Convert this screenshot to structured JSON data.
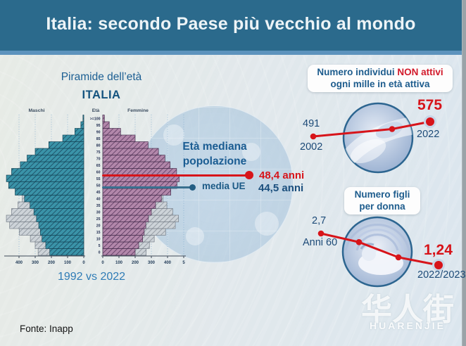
{
  "header": {
    "title": "Italia: secondo Paese più vecchio al mondo"
  },
  "pyramid_section": {
    "title": "Piramide dell’età",
    "subtitle": "ITALIA",
    "left_label": "Maschi",
    "center_label": "Età",
    "right_label": "Femmine",
    "footer": "1992 vs 2022",
    "median": {
      "heading_line1": "Età mediana",
      "heading_line2": "popolazione",
      "italy_value": "48,4 anni",
      "eu_label": "media UE",
      "eu_value": "44,5 anni"
    }
  },
  "stats": {
    "inactive": {
      "badge_line1_prefix": "Numero individui ",
      "badge_line1_highlight": "NON attivi",
      "badge_line2": "ogni mille in età attiva",
      "start_value": "491",
      "start_label": "2002",
      "end_value": "575",
      "end_label": "2022"
    },
    "fertility": {
      "badge_line1": "Numero figli",
      "badge_line2": "per donna",
      "start_value": "2,7",
      "start_label": "Anni 60",
      "end_value": "1,24",
      "end_label": "2022/2023"
    }
  },
  "footer": {
    "source": "Fonte: Inapp",
    "logo_cjk": "华人街",
    "logo_latin": "HUARENJIE"
  },
  "colors": {
    "header_bg": "#2b6a8c",
    "accent_strip": "#5d93bd",
    "accent_red": "#d7141a",
    "navy_text": "#1c4a77",
    "blue_text": "#1d5c8d",
    "eu_line_blue": "#39708f",
    "pyramid_male_2022": "#3a93a8",
    "pyramid_female_2022": "#b287aa",
    "pyramid_1992": "#cdd3d8"
  },
  "chart_data": [
    {
      "id": "population_pyramid",
      "type": "bar",
      "orientation": "horizontal-pyramid",
      "title": "Piramide dell’età — ITALIA",
      "comparison": "1992 vs 2022",
      "age_groups": [
        "0",
        "5",
        "10",
        "15",
        "20",
        "25",
        "30",
        "35",
        "40",
        "45",
        "50",
        "55",
        "60",
        "65",
        "70",
        "75",
        "80",
        "85",
        "90",
        "95",
        ">=100"
      ],
      "series": [
        {
          "name": "Maschi 1992",
          "side": "left",
          "year": "1992",
          "values": [
            282,
            300,
            330,
            398,
            458,
            478,
            446,
            406,
            380,
            352,
            336,
            330,
            306,
            260,
            200,
            146,
            86,
            40,
            14,
            4,
            1
          ]
        },
        {
          "name": "Femmine 1992",
          "side": "right",
          "year": "1992",
          "values": [
            268,
            288,
            318,
            388,
            448,
            468,
            432,
            396,
            372,
            352,
            342,
            342,
            330,
            300,
            262,
            218,
            150,
            80,
            35,
            10,
            2
          ]
        },
        {
          "name": "Maschi 2022",
          "side": "left",
          "year": "2022",
          "values": [
            210,
            235,
            258,
            268,
            278,
            292,
            308,
            332,
            366,
            424,
            464,
            478,
            446,
            392,
            350,
            300,
            216,
            130,
            55,
            18,
            5
          ]
        },
        {
          "name": "Femmine 2022",
          "side": "right",
          "year": "2022",
          "values": [
            200,
            222,
            246,
            256,
            266,
            282,
            300,
            326,
            362,
            420,
            458,
            472,
            456,
            416,
            384,
            344,
            280,
            200,
            110,
            40,
            10
          ]
        }
      ],
      "x_axis": {
        "left_ticks": [
          "400",
          "300",
          "200",
          "100",
          "0"
        ],
        "right_ticks": [
          "0",
          "100",
          "200",
          "300",
          "400",
          "5"
        ],
        "range_per_side": [
          0,
          500
        ]
      },
      "grid": "dotted vertical lines every 100",
      "annotations": [
        {
          "label": "Età mediana popolazione Italia",
          "value": 48.4,
          "value_text": "48,4 anni",
          "color": "red"
        },
        {
          "label": "media UE",
          "value": 44.5,
          "value_text": "44,5 anni",
          "color": "blue"
        }
      ]
    },
    {
      "id": "non_active_per_thousand",
      "type": "line",
      "title": "Numero individui NON attivi ogni mille in età attiva",
      "points": [
        {
          "label": "2002",
          "value": 491
        },
        {
          "label": "",
          "value": 533,
          "estimated": true
        },
        {
          "label": "2022",
          "value": 575
        }
      ],
      "ylim": [
        450,
        600
      ],
      "legend_position": "none"
    },
    {
      "id": "children_per_woman",
      "type": "line",
      "title": "Numero figli per donna",
      "points": [
        {
          "label": "Anni 60",
          "value": 2.7
        },
        {
          "label": "",
          "value": 2.3,
          "estimated": true
        },
        {
          "label": "",
          "value": 1.6,
          "estimated": true
        },
        {
          "label": "2022/2023",
          "value": 1.24
        }
      ],
      "ylim": [
        1.0,
        3.0
      ],
      "legend_position": "none"
    }
  ]
}
